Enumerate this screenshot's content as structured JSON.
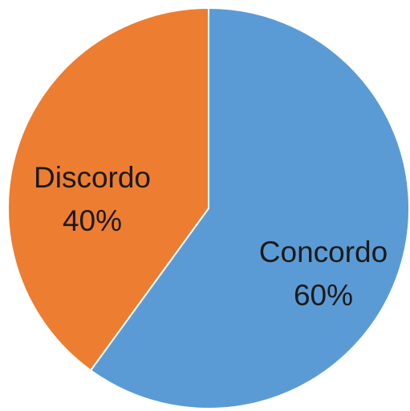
{
  "chart_data": {
    "type": "pie",
    "title": "",
    "start_angle_deg": 0,
    "direction": "clockwise",
    "slices": [
      {
        "label": "Concordo",
        "value": 60,
        "percent_label": "60%",
        "color": "#5B9BD5"
      },
      {
        "label": "Discordo",
        "value": 40,
        "percent_label": "40%",
        "color": "#ED7D31"
      }
    ],
    "legend": "none",
    "border_color": "#ffffff"
  }
}
